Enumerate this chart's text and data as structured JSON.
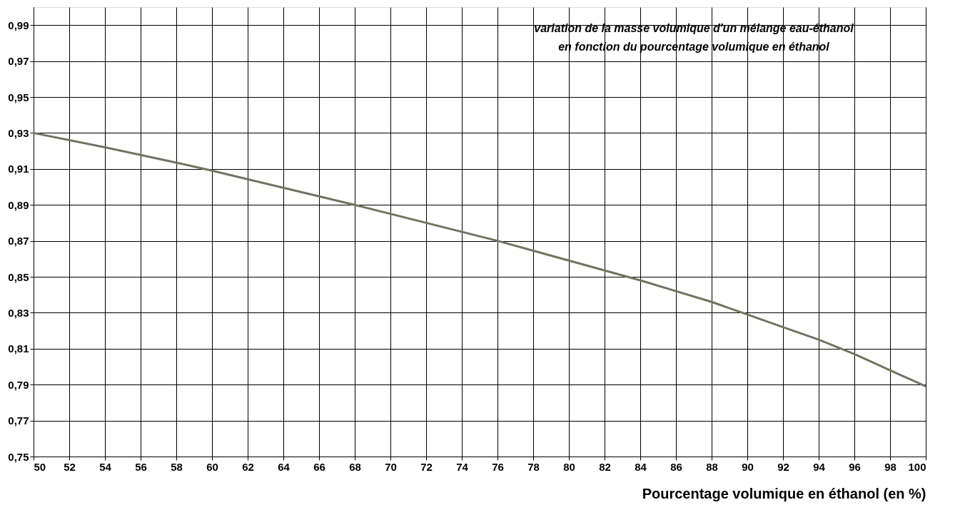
{
  "chart_data": {
    "type": "line",
    "title": "variation de la masse volumique d'un mélange eau-éthanol\nen fonction du pourcentage volumique en éthanol",
    "xlabel": "Pourcentage volumique en éthanol (en %)",
    "x": [
      50,
      54,
      58,
      60,
      64,
      68,
      72,
      76,
      80,
      84,
      86,
      88,
      90,
      92,
      94,
      96,
      98,
      100
    ],
    "series": [
      {
        "color": "#6e7560",
        "values": [
          0.93,
          0.922,
          0.9135,
          0.909,
          0.8995,
          0.89,
          0.88,
          0.87,
          0.859,
          0.848,
          0.842,
          0.836,
          0.829,
          0.822,
          0.815,
          0.807,
          0.798,
          0.789
        ]
      }
    ],
    "xlim": [
      50,
      100
    ],
    "xticks": [
      50,
      52,
      54,
      56,
      58,
      60,
      62,
      64,
      66,
      68,
      70,
      72,
      74,
      76,
      78,
      80,
      82,
      84,
      86,
      88,
      90,
      92,
      94,
      96,
      98,
      100
    ],
    "ylim": [
      0.75,
      1.0
    ],
    "yticks": [
      {
        "value": 0.75,
        "label": "0,75"
      },
      {
        "value": 0.77,
        "label": "0,77"
      },
      {
        "value": 0.79,
        "label": "0,79"
      },
      {
        "value": 0.81,
        "label": "0,81"
      },
      {
        "value": 0.83,
        "label": "0,83"
      },
      {
        "value": 0.85,
        "label": "0,85"
      },
      {
        "value": 0.87,
        "label": "0,87"
      },
      {
        "value": 0.89,
        "label": "0,89"
      },
      {
        "value": 0.91,
        "label": "0,91"
      },
      {
        "value": 0.93,
        "label": "0,93"
      },
      {
        "value": 0.95,
        "label": "0,95"
      },
      {
        "value": 0.97,
        "label": "0,97"
      },
      {
        "value": 0.99,
        "label": "0,99"
      }
    ],
    "grid": true,
    "marker": "none",
    "line_style": "solid"
  }
}
